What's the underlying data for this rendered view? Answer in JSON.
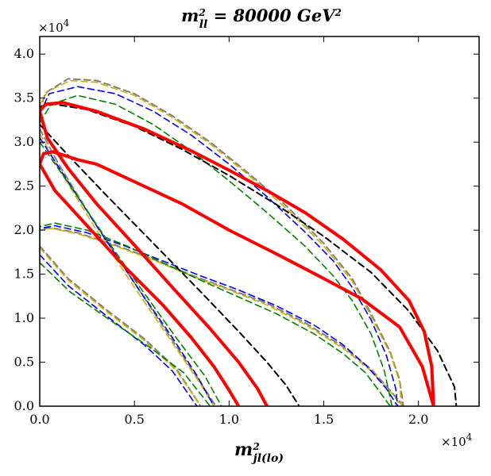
{
  "chart_data": {
    "type": "line",
    "title": {
      "base": "m",
      "sup": "2",
      "sub": "ll",
      "rest": " = 80000 GeV",
      "unit_sup": "2"
    },
    "xlabel": {
      "base": "m",
      "sup": "2",
      "sub": "jl(lo)"
    },
    "ylabel": "",
    "xlim": [
      0,
      23200
    ],
    "ylim": [
      0,
      42000
    ],
    "x_ticks": [
      0,
      5000,
      10000,
      15000,
      20000
    ],
    "x_tick_labels": [
      "0.0",
      "0.5",
      "1.0",
      "1.5",
      "2.0"
    ],
    "y_ticks": [
      0,
      5000,
      10000,
      15000,
      20000,
      25000,
      30000,
      35000,
      40000
    ],
    "y_tick_labels": [
      "0.0",
      "0.5",
      "1.0",
      "1.5",
      "2.0",
      "2.5",
      "3.0",
      "3.5",
      "4.0"
    ],
    "x_offset": {
      "base": "×10",
      "exp": "4"
    },
    "y_offset": {
      "base": "×10",
      "exp": "4"
    },
    "grid": false,
    "series": [
      {
        "color": "#808080",
        "style": "dashed",
        "width": 2,
        "outer": [
          [
            0,
            33500
          ],
          [
            300,
            35600
          ],
          [
            1500,
            37200
          ],
          [
            3000,
            37000
          ],
          [
            5000,
            35500
          ],
          [
            7000,
            33000
          ],
          [
            9000,
            30000
          ],
          [
            11000,
            26500
          ],
          [
            13000,
            22800
          ],
          [
            15000,
            18500
          ],
          [
            16500,
            14500
          ],
          [
            17500,
            10500
          ],
          [
            18500,
            6200
          ],
          [
            19000,
            3000
          ],
          [
            19200,
            0
          ]
        ],
        "inner": [
          [
            0,
            18200
          ],
          [
            0,
            20000
          ],
          [
            500,
            20300
          ],
          [
            2000,
            19700
          ],
          [
            4000,
            18300
          ],
          [
            6000,
            16700
          ],
          [
            8000,
            14900
          ],
          [
            10000,
            13300
          ],
          [
            12000,
            11700
          ],
          [
            14000,
            9500
          ],
          [
            16000,
            6800
          ],
          [
            17500,
            4200
          ],
          [
            18500,
            1800
          ],
          [
            19200,
            0
          ]
        ],
        "lower": [
          [
            0,
            31500
          ],
          [
            1000,
            27500
          ],
          [
            3000,
            20500
          ],
          [
            5000,
            14000
          ],
          [
            7000,
            7500
          ],
          [
            8400,
            3000
          ],
          [
            9300,
            0
          ]
        ],
        "lower2": [
          [
            0,
            18200
          ],
          [
            1500,
            14500
          ],
          [
            3500,
            11000
          ],
          [
            5500,
            7700
          ],
          [
            7200,
            4300
          ],
          [
            8500,
            0
          ]
        ]
      },
      {
        "color": "#c8b400",
        "style": "dashed",
        "width": 1.6,
        "outer": [
          [
            0,
            34200
          ],
          [
            400,
            35700
          ],
          [
            1600,
            37000
          ],
          [
            3000,
            36800
          ],
          [
            5000,
            35300
          ],
          [
            7000,
            32800
          ],
          [
            9000,
            29800
          ],
          [
            11000,
            26300
          ],
          [
            13000,
            22500
          ],
          [
            15000,
            18200
          ],
          [
            16500,
            14200
          ],
          [
            17500,
            10200
          ],
          [
            18500,
            6000
          ],
          [
            19000,
            2800
          ],
          [
            19100,
            0
          ]
        ],
        "inner": [
          [
            0,
            18600
          ],
          [
            0,
            20000
          ],
          [
            600,
            20200
          ],
          [
            2000,
            19600
          ],
          [
            4000,
            18200
          ],
          [
            6000,
            16600
          ],
          [
            8000,
            14800
          ],
          [
            10000,
            13200
          ],
          [
            12000,
            11500
          ],
          [
            14000,
            9300
          ],
          [
            16000,
            6600
          ],
          [
            17500,
            4000
          ],
          [
            18500,
            1700
          ],
          [
            19100,
            0
          ]
        ],
        "lower": [
          [
            0,
            31000
          ],
          [
            1000,
            27000
          ],
          [
            3000,
            20000
          ],
          [
            5000,
            13500
          ],
          [
            7000,
            7200
          ],
          [
            8400,
            2800
          ],
          [
            9200,
            0
          ]
        ],
        "lower2": [
          [
            0,
            18000
          ],
          [
            1500,
            14300
          ],
          [
            3500,
            10800
          ],
          [
            5500,
            7500
          ],
          [
            7200,
            4100
          ],
          [
            8500,
            0
          ]
        ]
      },
      {
        "color": "#0000ff",
        "style": "dashed",
        "width": 1.6,
        "outer": [
          [
            0,
            33200
          ],
          [
            500,
            35500
          ],
          [
            2000,
            36300
          ],
          [
            4000,
            35500
          ],
          [
            6000,
            33500
          ],
          [
            8000,
            30800
          ],
          [
            10000,
            27500
          ],
          [
            12000,
            23800
          ],
          [
            14000,
            19800
          ],
          [
            15500,
            16500
          ],
          [
            16500,
            13500
          ],
          [
            17500,
            9800
          ],
          [
            18300,
            5800
          ],
          [
            18800,
            2000
          ],
          [
            18900,
            0
          ]
        ],
        "inner": [
          [
            0,
            17200
          ],
          [
            0,
            20200
          ],
          [
            800,
            20500
          ],
          [
            2500,
            19700
          ],
          [
            4500,
            18200
          ],
          [
            6500,
            16500
          ],
          [
            8500,
            14800
          ],
          [
            10500,
            13200
          ],
          [
            12500,
            11400
          ],
          [
            14500,
            9200
          ],
          [
            16000,
            7000
          ],
          [
            17300,
            4500
          ],
          [
            18300,
            2000
          ],
          [
            18900,
            0
          ]
        ],
        "lower": [
          [
            0,
            30500
          ],
          [
            1200,
            26500
          ],
          [
            3000,
            20500
          ],
          [
            5000,
            14000
          ],
          [
            7000,
            7800
          ],
          [
            8300,
            3500
          ],
          [
            9200,
            0
          ]
        ],
        "lower2": [
          [
            0,
            17200
          ],
          [
            1500,
            13700
          ],
          [
            3500,
            10300
          ],
          [
            5500,
            7000
          ],
          [
            7000,
            4000
          ],
          [
            8300,
            0
          ]
        ]
      },
      {
        "color": "#008000",
        "style": "dashed",
        "width": 1.6,
        "outer": [
          [
            0,
            32200
          ],
          [
            600,
            34300
          ],
          [
            2000,
            35300
          ],
          [
            4000,
            34300
          ],
          [
            6000,
            32000
          ],
          [
            8000,
            29000
          ],
          [
            10000,
            25600
          ],
          [
            12000,
            22000
          ],
          [
            14000,
            18200
          ],
          [
            15500,
            14800
          ],
          [
            16500,
            12000
          ],
          [
            17500,
            8200
          ],
          [
            18200,
            4000
          ],
          [
            18600,
            0
          ]
        ],
        "inner": [
          [
            0,
            16300
          ],
          [
            0,
            20400
          ],
          [
            800,
            20800
          ],
          [
            2500,
            20000
          ],
          [
            4500,
            18300
          ],
          [
            6500,
            16300
          ],
          [
            8500,
            14300
          ],
          [
            10500,
            12400
          ],
          [
            12500,
            10500
          ],
          [
            14500,
            8200
          ],
          [
            16000,
            6000
          ],
          [
            17200,
            3800
          ],
          [
            18000,
            1500
          ],
          [
            18500,
            0
          ]
        ],
        "lower": [
          [
            0,
            30000
          ],
          [
            1300,
            26000
          ],
          [
            3200,
            20000
          ],
          [
            5300,
            13500
          ],
          [
            7300,
            7500
          ],
          [
            8700,
            3500
          ],
          [
            9600,
            0
          ]
        ],
        "lower2": [
          [
            0,
            16300
          ],
          [
            1600,
            13000
          ],
          [
            3700,
            9800
          ],
          [
            5800,
            6700
          ],
          [
            7600,
            3800
          ],
          [
            9000,
            0
          ]
        ]
      },
      {
        "color": "#000000",
        "style": "dashed",
        "width": 2,
        "outer": [
          [
            0,
            34000
          ],
          [
            800,
            34300
          ],
          [
            2500,
            33700
          ],
          [
            5000,
            31800
          ],
          [
            7500,
            29200
          ],
          [
            10000,
            26200
          ],
          [
            12500,
            22900
          ],
          [
            15000,
            19300
          ],
          [
            17500,
            15200
          ],
          [
            19500,
            10800
          ],
          [
            21000,
            6300
          ],
          [
            21900,
            2200
          ],
          [
            22000,
            0
          ]
        ],
        "lower": [
          [
            0,
            32000
          ],
          [
            1500,
            28500
          ],
          [
            3500,
            24000
          ],
          [
            6000,
            18500
          ],
          [
            8500,
            13000
          ],
          [
            10500,
            8500
          ],
          [
            12000,
            5000
          ],
          [
            13000,
            2400
          ],
          [
            13700,
            0
          ]
        ]
      },
      {
        "color": "#ff0000",
        "style": "solid",
        "width": 4,
        "outer": [
          [
            0,
            33500
          ],
          [
            300,
            34300
          ],
          [
            1200,
            34500
          ],
          [
            3000,
            33500
          ],
          [
            5500,
            31500
          ],
          [
            8000,
            29000
          ],
          [
            10000,
            26800
          ],
          [
            12000,
            24500
          ],
          [
            14000,
            22000
          ],
          [
            16000,
            19000
          ],
          [
            18000,
            15500
          ],
          [
            19500,
            12000
          ],
          [
            20300,
            8500
          ],
          [
            20700,
            4500
          ],
          [
            20800,
            0
          ]
        ],
        "inner": [
          [
            0,
            27500
          ],
          [
            200,
            28700
          ],
          [
            700,
            28900
          ],
          [
            2000,
            28000
          ],
          [
            3000,
            27500
          ],
          [
            5000,
            25500
          ],
          [
            7500,
            23000
          ],
          [
            10000,
            20000
          ],
          [
            12500,
            17300
          ],
          [
            15000,
            14500
          ],
          [
            17000,
            12200
          ],
          [
            19000,
            9000
          ],
          [
            20200,
            4500
          ],
          [
            20800,
            0
          ]
        ],
        "lower": [
          [
            0,
            33500
          ],
          [
            400,
            30500
          ],
          [
            1500,
            27000
          ],
          [
            3000,
            23000
          ],
          [
            5000,
            18300
          ],
          [
            7000,
            13500
          ],
          [
            9000,
            8800
          ],
          [
            10500,
            5000
          ],
          [
            11500,
            2000
          ],
          [
            12000,
            0
          ]
        ],
        "lower2": [
          [
            0,
            27500
          ],
          [
            800,
            24500
          ],
          [
            2500,
            20500
          ],
          [
            4500,
            15800
          ],
          [
            6500,
            11500
          ],
          [
            8000,
            7800
          ],
          [
            9200,
            4500
          ],
          [
            10000,
            1800
          ],
          [
            10500,
            0
          ]
        ]
      }
    ]
  }
}
